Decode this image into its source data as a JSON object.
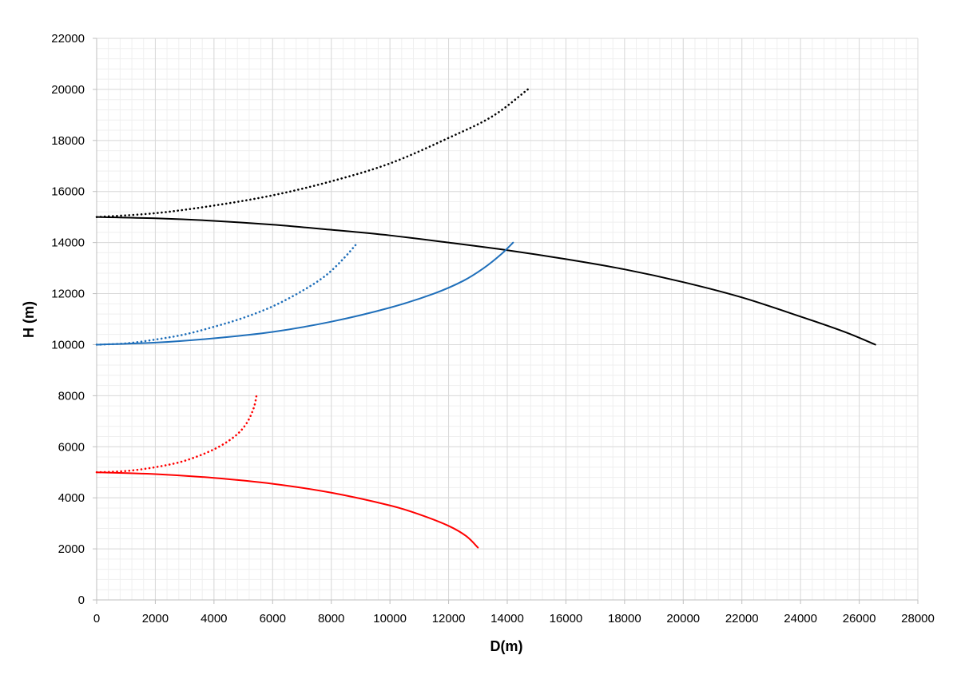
{
  "chart_data": {
    "type": "line",
    "title": "",
    "xlabel": "D(m)",
    "ylabel": "H (m)",
    "xlim": [
      0,
      28000
    ],
    "ylim": [
      0,
      22000
    ],
    "x_major_step": 2000,
    "y_major_step": 2000,
    "x_minor_step": 400,
    "y_minor_step": 400,
    "grid": true,
    "legend": "none",
    "x_ticks": [
      "0",
      "2000",
      "4000",
      "6000",
      "8000",
      "10000",
      "12000",
      "14000",
      "16000",
      "18000",
      "20000",
      "22000",
      "24000",
      "26000",
      "28000"
    ],
    "y_ticks": [
      "0",
      "2000",
      "4000",
      "6000",
      "8000",
      "10000",
      "12000",
      "14000",
      "16000",
      "18000",
      "20000",
      "22000"
    ],
    "series": [
      {
        "color": "#000000",
        "style": "solid",
        "x": [
          0,
          2000,
          4000,
          6000,
          8000,
          10000,
          12000,
          14000,
          16000,
          18000,
          20000,
          22000,
          24000,
          25500,
          26550
        ],
        "y": [
          15000,
          14950,
          14850,
          14700,
          14500,
          14280,
          14000,
          13700,
          13350,
          12950,
          12450,
          11850,
          11100,
          10500,
          10000
        ]
      },
      {
        "color": "#000000",
        "style": "dotted",
        "x": [
          0,
          2000,
          4000,
          6000,
          8000,
          10000,
          12000,
          13500,
          14700
        ],
        "y": [
          15000,
          15150,
          15450,
          15850,
          16400,
          17100,
          18100,
          18950,
          20000
        ]
      },
      {
        "color": "#1f6fba",
        "style": "solid",
        "x": [
          0,
          2000,
          4000,
          6000,
          8000,
          10000,
          11500,
          12500,
          13200,
          13800,
          14200
        ],
        "y": [
          10000,
          10080,
          10250,
          10500,
          10900,
          11450,
          12000,
          12500,
          13000,
          13550,
          14000
        ]
      },
      {
        "color": "#1f6fba",
        "style": "dotted",
        "x": [
          0,
          1000,
          2000,
          3000,
          4000,
          5000,
          6000,
          7000,
          7800,
          8400,
          8900
        ],
        "y": [
          10000,
          10050,
          10200,
          10400,
          10700,
          11050,
          11500,
          12100,
          12700,
          13350,
          14000
        ]
      },
      {
        "color": "#ff0000",
        "style": "solid",
        "x": [
          0,
          2000,
          4000,
          6000,
          8000,
          10000,
          11000,
          12000,
          12600,
          13000
        ],
        "y": [
          5000,
          4930,
          4780,
          4550,
          4200,
          3700,
          3350,
          2900,
          2500,
          2050
        ]
      },
      {
        "color": "#ff0000",
        "style": "dotted",
        "x": [
          0,
          1000,
          2000,
          3000,
          4000,
          4700,
          5100,
          5350,
          5450
        ],
        "y": [
          5000,
          5050,
          5200,
          5450,
          5900,
          6400,
          6900,
          7500,
          8000
        ]
      }
    ]
  }
}
